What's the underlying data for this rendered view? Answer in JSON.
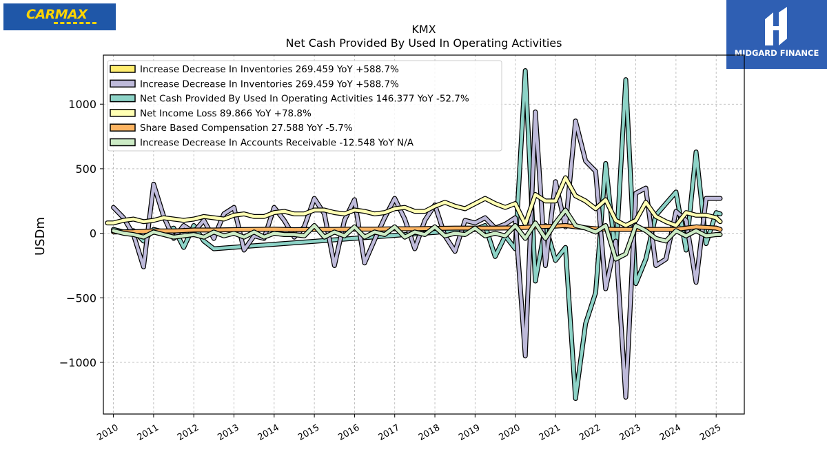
{
  "brand_left": {
    "logo_text": "CARMAX"
  },
  "brand_right": {
    "name": "MIDGARD FINANCE"
  },
  "chart_data": {
    "type": "line",
    "ticker": "KMX",
    "title": "Net Cash Provided By Used In Operating Activities",
    "xlabel": "",
    "ylabel": "USDm",
    "xlim": [
      2009.75,
      2025.7
    ],
    "ylim": [
      -1400,
      1380
    ],
    "yticks": [
      -1000,
      -500,
      0,
      500,
      1000
    ],
    "ytick_labels": [
      "−1000",
      "−500",
      "0",
      "500",
      "1000"
    ],
    "xticks": [
      2010,
      2011,
      2012,
      2013,
      2014,
      2015,
      2016,
      2017,
      2018,
      2019,
      2020,
      2021,
      2022,
      2023,
      2024,
      2025
    ],
    "grid": true,
    "legend_position": "top-left",
    "legend": [
      {
        "label": "Increase Decrease In Inventories  269.459 YoY +588.7%",
        "color": "#ffed6f"
      },
      {
        "label": "Increase Decrease In Inventories  269.459 YoY +588.7%",
        "color": "#bebada"
      },
      {
        "label": "Net Cash Provided By Used In Operating Activities  146.377 YoY -52.7%",
        "color": "#8dd3c7"
      },
      {
        "label": "Net Income Loss  89.866 YoY +78.8%",
        "color": "#ffffb3"
      },
      {
        "label": "Share Based Compensation  27.588 YoY -5.7%",
        "color": "#fdb462"
      },
      {
        "label": "Increase Decrease In Accounts Receivable  -12.548 YoY N/A",
        "color": "#ccebc5"
      }
    ],
    "series": [
      {
        "name": "Net Cash Provided By Used In Operating Activities",
        "color": "#8dd3c7",
        "points": [
          [
            2010.0,
            30
          ],
          [
            2010.25,
            10
          ],
          [
            2010.5,
            20
          ],
          [
            2010.75,
            -60
          ],
          [
            2011.0,
            30
          ],
          [
            2011.25,
            10
          ],
          [
            2011.5,
            40
          ],
          [
            2011.75,
            -110
          ],
          [
            2012.0,
            60
          ],
          [
            2012.25,
            -60
          ],
          [
            2012.5,
            -120
          ],
          [
            2019.0,
            30
          ],
          [
            2019.25,
            60
          ],
          [
            2019.5,
            -180
          ],
          [
            2019.75,
            -20
          ],
          [
            2020.0,
            -120
          ],
          [
            2020.25,
            1260
          ],
          [
            2020.5,
            -370
          ],
          [
            2020.75,
            60
          ],
          [
            2021.0,
            -210
          ],
          [
            2021.25,
            -110
          ],
          [
            2021.5,
            -1280
          ],
          [
            2021.75,
            -700
          ],
          [
            2022.0,
            -460
          ],
          [
            2022.25,
            540
          ],
          [
            2022.5,
            -190
          ],
          [
            2022.75,
            1190
          ],
          [
            2023.0,
            -390
          ],
          [
            2023.25,
            -200
          ],
          [
            2023.5,
            140
          ],
          [
            2023.75,
            230
          ],
          [
            2024.0,
            320
          ],
          [
            2024.25,
            -130
          ],
          [
            2024.5,
            630
          ],
          [
            2024.75,
            -80
          ],
          [
            2025.0,
            160
          ],
          [
            2025.1,
            150
          ]
        ]
      },
      {
        "name": "Increase Decrease In Inventories",
        "color": "#bebada",
        "points": [
          [
            2010.0,
            200
          ],
          [
            2010.25,
            120
          ],
          [
            2010.5,
            -10
          ],
          [
            2010.75,
            -260
          ],
          [
            2011.0,
            380
          ],
          [
            2011.25,
            130
          ],
          [
            2011.5,
            -40
          ],
          [
            2011.75,
            60
          ],
          [
            2012.0,
            10
          ],
          [
            2012.25,
            100
          ],
          [
            2012.5,
            -40
          ],
          [
            2012.75,
            150
          ],
          [
            2013.0,
            200
          ],
          [
            2013.25,
            -130
          ],
          [
            2013.5,
            -20
          ],
          [
            2013.75,
            -40
          ],
          [
            2014.0,
            200
          ],
          [
            2014.25,
            100
          ],
          [
            2014.5,
            -30
          ],
          [
            2014.75,
            50
          ],
          [
            2015.0,
            270
          ],
          [
            2015.25,
            150
          ],
          [
            2015.5,
            -250
          ],
          [
            2015.75,
            100
          ],
          [
            2016.0,
            260
          ],
          [
            2016.25,
            -230
          ],
          [
            2016.5,
            -50
          ],
          [
            2016.75,
            120
          ],
          [
            2017.0,
            270
          ],
          [
            2017.25,
            110
          ],
          [
            2017.5,
            -120
          ],
          [
            2017.75,
            100
          ],
          [
            2018.0,
            220
          ],
          [
            2018.25,
            -20
          ],
          [
            2018.5,
            -140
          ],
          [
            2018.75,
            100
          ],
          [
            2019.0,
            80
          ],
          [
            2019.25,
            120
          ],
          [
            2019.5,
            40
          ],
          [
            2019.75,
            70
          ],
          [
            2020.0,
            120
          ],
          [
            2020.25,
            -950
          ],
          [
            2020.5,
            940
          ],
          [
            2020.75,
            -250
          ],
          [
            2021.0,
            400
          ],
          [
            2021.25,
            50
          ],
          [
            2021.5,
            870
          ],
          [
            2021.75,
            560
          ],
          [
            2022.0,
            480
          ],
          [
            2022.25,
            -430
          ],
          [
            2022.5,
            -60
          ],
          [
            2022.75,
            -1270
          ],
          [
            2023.0,
            310
          ],
          [
            2023.25,
            350
          ],
          [
            2023.5,
            -250
          ],
          [
            2023.75,
            -200
          ],
          [
            2024.0,
            170
          ],
          [
            2024.25,
            100
          ],
          [
            2024.5,
            -380
          ],
          [
            2024.75,
            270
          ],
          [
            2025.0,
            270
          ],
          [
            2025.1,
            270
          ]
        ]
      },
      {
        "name": "Net Income Loss",
        "color": "#ffffb3",
        "points": [
          [
            2009.85,
            80
          ],
          [
            2010.0,
            80
          ],
          [
            2010.25,
            100
          ],
          [
            2010.5,
            110
          ],
          [
            2010.75,
            90
          ],
          [
            2011.0,
            100
          ],
          [
            2011.25,
            120
          ],
          [
            2011.5,
            110
          ],
          [
            2011.75,
            100
          ],
          [
            2012.0,
            110
          ],
          [
            2012.25,
            130
          ],
          [
            2012.5,
            120
          ],
          [
            2012.75,
            110
          ],
          [
            2013.0,
            140
          ],
          [
            2013.25,
            150
          ],
          [
            2013.5,
            130
          ],
          [
            2013.75,
            130
          ],
          [
            2014.0,
            160
          ],
          [
            2014.25,
            170
          ],
          [
            2014.5,
            150
          ],
          [
            2014.75,
            150
          ],
          [
            2015.0,
            180
          ],
          [
            2015.25,
            180
          ],
          [
            2015.5,
            160
          ],
          [
            2015.75,
            150
          ],
          [
            2016.0,
            180
          ],
          [
            2016.25,
            170
          ],
          [
            2016.5,
            150
          ],
          [
            2016.75,
            160
          ],
          [
            2017.0,
            190
          ],
          [
            2017.25,
            200
          ],
          [
            2017.5,
            170
          ],
          [
            2017.75,
            170
          ],
          [
            2018.0,
            210
          ],
          [
            2018.25,
            240
          ],
          [
            2018.5,
            210
          ],
          [
            2018.75,
            190
          ],
          [
            2019.0,
            230
          ],
          [
            2019.25,
            270
          ],
          [
            2019.5,
            230
          ],
          [
            2019.75,
            200
          ],
          [
            2020.0,
            230
          ],
          [
            2020.25,
            70
          ],
          [
            2020.5,
            300
          ],
          [
            2020.75,
            250
          ],
          [
            2021.0,
            250
          ],
          [
            2021.25,
            430
          ],
          [
            2021.5,
            290
          ],
          [
            2021.75,
            250
          ],
          [
            2022.0,
            190
          ],
          [
            2022.25,
            260
          ],
          [
            2022.5,
            100
          ],
          [
            2022.75,
            60
          ],
          [
            2023.0,
            100
          ],
          [
            2023.25,
            240
          ],
          [
            2023.5,
            130
          ],
          [
            2023.75,
            90
          ],
          [
            2024.0,
            60
          ],
          [
            2024.25,
            160
          ],
          [
            2024.5,
            140
          ],
          [
            2024.75,
            140
          ],
          [
            2025.0,
            120
          ],
          [
            2025.1,
            90
          ]
        ]
      },
      {
        "name": "Share Based Compensation",
        "color": "#fdb462",
        "points": [
          [
            2010.0,
            10
          ],
          [
            2010.5,
            12
          ],
          [
            2011.0,
            18
          ],
          [
            2011.5,
            18
          ],
          [
            2012.0,
            25
          ],
          [
            2012.5,
            25
          ],
          [
            2013.0,
            28
          ],
          [
            2013.5,
            30
          ],
          [
            2014.0,
            32
          ],
          [
            2014.5,
            28
          ],
          [
            2015.0,
            30
          ],
          [
            2015.5,
            30
          ],
          [
            2016.0,
            32
          ],
          [
            2016.5,
            32
          ],
          [
            2017.0,
            35
          ],
          [
            2017.5,
            35
          ],
          [
            2018.0,
            38
          ],
          [
            2018.5,
            40
          ],
          [
            2019.0,
            40
          ],
          [
            2019.5,
            40
          ],
          [
            2020.0,
            42
          ],
          [
            2020.5,
            50
          ],
          [
            2021.0,
            55
          ],
          [
            2021.25,
            60
          ],
          [
            2021.5,
            50
          ],
          [
            2022.0,
            35
          ],
          [
            2022.5,
            30
          ],
          [
            2023.0,
            30
          ],
          [
            2023.5,
            30
          ],
          [
            2024.0,
            30
          ],
          [
            2024.5,
            50
          ],
          [
            2025.0,
            40
          ],
          [
            2025.1,
            30
          ]
        ]
      },
      {
        "name": "Increase Decrease In Accounts Receivable",
        "color": "#ccebc5",
        "points": [
          [
            2010.0,
            20
          ],
          [
            2010.25,
            0
          ],
          [
            2010.5,
            -10
          ],
          [
            2010.75,
            -30
          ],
          [
            2011.0,
            10
          ],
          [
            2011.25,
            -10
          ],
          [
            2011.5,
            -30
          ],
          [
            2011.75,
            -20
          ],
          [
            2012.0,
            -10
          ],
          [
            2012.25,
            -30
          ],
          [
            2012.5,
            10
          ],
          [
            2012.75,
            -20
          ],
          [
            2013.0,
            0
          ],
          [
            2013.25,
            -30
          ],
          [
            2013.5,
            10
          ],
          [
            2013.75,
            -30
          ],
          [
            2014.0,
            0
          ],
          [
            2014.25,
            -10
          ],
          [
            2014.5,
            -10
          ],
          [
            2014.75,
            -20
          ],
          [
            2015.0,
            60
          ],
          [
            2015.25,
            -30
          ],
          [
            2015.5,
            10
          ],
          [
            2015.75,
            -20
          ],
          [
            2016.0,
            50
          ],
          [
            2016.25,
            -30
          ],
          [
            2016.5,
            10
          ],
          [
            2016.75,
            -10
          ],
          [
            2017.0,
            50
          ],
          [
            2017.25,
            -30
          ],
          [
            2017.5,
            10
          ],
          [
            2017.75,
            -10
          ],
          [
            2018.0,
            50
          ],
          [
            2018.25,
            -20
          ],
          [
            2018.5,
            0
          ],
          [
            2018.75,
            -10
          ],
          [
            2019.0,
            40
          ],
          [
            2019.25,
            -20
          ],
          [
            2019.5,
            0
          ],
          [
            2019.75,
            -20
          ],
          [
            2020.0,
            60
          ],
          [
            2020.25,
            -40
          ],
          [
            2020.5,
            80
          ],
          [
            2020.75,
            -40
          ],
          [
            2021.0,
            80
          ],
          [
            2021.25,
            180
          ],
          [
            2021.5,
            60
          ],
          [
            2021.75,
            40
          ],
          [
            2022.0,
            10
          ],
          [
            2022.25,
            60
          ],
          [
            2022.5,
            -200
          ],
          [
            2022.75,
            -160
          ],
          [
            2023.0,
            60
          ],
          [
            2023.25,
            20
          ],
          [
            2023.5,
            -40
          ],
          [
            2023.75,
            -60
          ],
          [
            2024.0,
            20
          ],
          [
            2024.25,
            -20
          ],
          [
            2024.5,
            20
          ],
          [
            2024.75,
            -20
          ],
          [
            2025.0,
            -10
          ],
          [
            2025.1,
            -10
          ]
        ]
      },
      {
        "name": "Increase Decrease In Inventories",
        "color": "#ffed6f",
        "points": []
      }
    ]
  }
}
